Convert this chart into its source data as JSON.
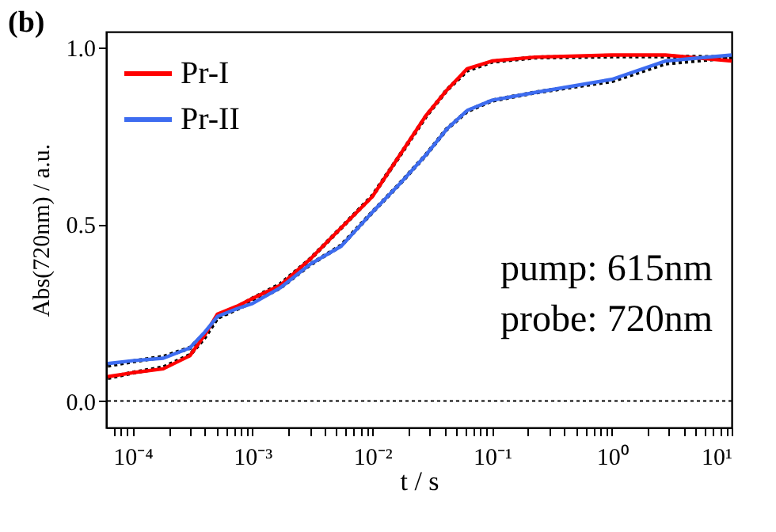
{
  "chart_data": {
    "type": "line",
    "title": "(b)",
    "xlabel": "t / s",
    "ylabel": "Abs(720nm) / a.u.",
    "log": "x",
    "grid": false,
    "legend": "top left",
    "marker": "none",
    "xlim": [
      6e-05,
      10
    ],
    "ylim": [
      -0.075,
      1.045
    ],
    "xticks": [
      {
        "value": 7e-05,
        "label": null
      },
      {
        "value": 8e-05,
        "label": null
      },
      {
        "value": 9e-05,
        "label": null
      },
      {
        "value": 0.0001,
        "label": "10⁻⁴"
      },
      {
        "value": 0.0002,
        "label": null
      },
      {
        "value": 0.0003,
        "label": null
      },
      {
        "value": 0.0004,
        "label": null
      },
      {
        "value": 0.0005,
        "label": null
      },
      {
        "value": 0.0006,
        "label": null
      },
      {
        "value": 0.0007,
        "label": null
      },
      {
        "value": 0.0008,
        "label": null
      },
      {
        "value": 0.0009,
        "label": null
      },
      {
        "value": 0.001,
        "label": "10⁻³"
      },
      {
        "value": 0.002,
        "label": null
      },
      {
        "value": 0.003,
        "label": null
      },
      {
        "value": 0.004,
        "label": null
      },
      {
        "value": 0.005,
        "label": null
      },
      {
        "value": 0.006,
        "label": null
      },
      {
        "value": 0.007,
        "label": null
      },
      {
        "value": 0.008,
        "label": null
      },
      {
        "value": 0.009,
        "label": null
      },
      {
        "value": 0.01,
        "label": "10⁻²"
      },
      {
        "value": 0.02,
        "label": null
      },
      {
        "value": 0.03,
        "label": null
      },
      {
        "value": 0.04,
        "label": null
      },
      {
        "value": 0.05,
        "label": null
      },
      {
        "value": 0.06,
        "label": null
      },
      {
        "value": 0.07,
        "label": null
      },
      {
        "value": 0.08,
        "label": null
      },
      {
        "value": 0.09,
        "label": null
      },
      {
        "value": 0.1,
        "label": "10⁻¹"
      },
      {
        "value": 0.2,
        "label": null
      },
      {
        "value": 0.3,
        "label": null
      },
      {
        "value": 0.4,
        "label": null
      },
      {
        "value": 0.5,
        "label": null
      },
      {
        "value": 0.6,
        "label": null
      },
      {
        "value": 0.7,
        "label": null
      },
      {
        "value": 0.8,
        "label": null
      },
      {
        "value": 0.9,
        "label": null
      },
      {
        "value": 1,
        "label": "10⁰"
      },
      {
        "value": 2,
        "label": null
      },
      {
        "value": 3,
        "label": null
      },
      {
        "value": 4,
        "label": null
      },
      {
        "value": 5,
        "label": null
      },
      {
        "value": 6,
        "label": null
      },
      {
        "value": 7,
        "label": null
      },
      {
        "value": 8,
        "label": null
      },
      {
        "value": 9,
        "label": null
      },
      {
        "value": 10,
        "label": "10¹"
      }
    ],
    "yticks": [
      {
        "value": 0,
        "label": "0.0"
      },
      {
        "value": 0.5,
        "label": "0.5"
      },
      {
        "value": 1,
        "label": "1.0"
      }
    ],
    "x": [
      6.2e-05,
      0.0001,
      0.00018,
      0.0003,
      0.0004,
      0.00051,
      0.00074,
      0.001,
      0.0017,
      0.003,
      0.0055,
      0.01,
      0.017,
      0.028,
      0.042,
      0.062,
      0.1,
      0.23,
      1.0,
      2.8,
      10
    ],
    "series": [
      {
        "name": "Pr-I",
        "color": "#ff0000",
        "line_style": "solid",
        "values": [
          0.069,
          0.08,
          0.091,
          0.128,
          0.187,
          0.246,
          0.268,
          0.29,
          0.327,
          0.4,
          0.49,
          0.578,
          0.696,
          0.807,
          0.88,
          0.94,
          0.962,
          0.973,
          0.979,
          0.979,
          0.962
        ]
      },
      {
        "name": "Pr-II",
        "color": "#3d6cf0",
        "line_style": "solid",
        "values": [
          0.106,
          0.114,
          0.121,
          0.15,
          0.195,
          0.239,
          0.261,
          0.276,
          0.32,
          0.386,
          0.438,
          0.534,
          0.615,
          0.696,
          0.77,
          0.822,
          0.851,
          0.873,
          0.91,
          0.962,
          0.979
        ]
      },
      {
        "color": "#000000",
        "line_style": "dotted",
        "values": [
          0.065,
          0.08,
          0.095,
          0.13,
          0.18,
          0.235,
          0.265,
          0.29,
          0.33,
          0.4,
          0.49,
          0.58,
          0.695,
          0.805,
          0.88,
          0.935,
          0.96,
          0.972,
          0.975,
          0.975,
          0.972
        ]
      },
      {
        "color": "#000000",
        "line_style": "dotted",
        "values": [
          0.1,
          0.112,
          0.125,
          0.15,
          0.19,
          0.235,
          0.26,
          0.28,
          0.32,
          0.385,
          0.44,
          0.534,
          0.615,
          0.696,
          0.77,
          0.82,
          0.85,
          0.873,
          0.905,
          0.955,
          0.972
        ]
      }
    ],
    "ref_lines": [
      {
        "axis": "y",
        "value": 0,
        "color": "#000000",
        "line_style": "dotted"
      }
    ],
    "annotations": [
      "pump: 615nm",
      "probe: 720nm"
    ]
  }
}
